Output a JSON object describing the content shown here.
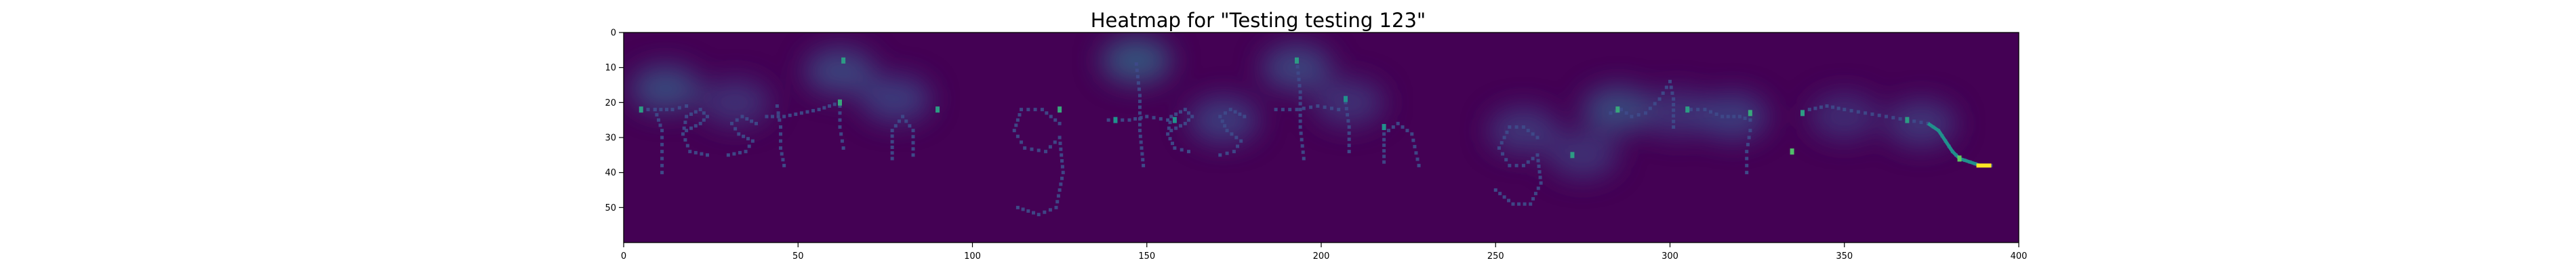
{
  "chart_data": {
    "type": "heatmap",
    "title": "Heatmap for \"Testing testing 123\"",
    "xlabel": "",
    "ylabel": "",
    "xlim": [
      0,
      400
    ],
    "ylim": [
      60,
      0
    ],
    "x_ticks": [
      0,
      50,
      100,
      150,
      200,
      250,
      300,
      350,
      400
    ],
    "y_ticks": [
      0,
      10,
      20,
      30,
      40,
      50
    ],
    "grid": false,
    "colormap": "viridis",
    "background_color": "#440154",
    "strokes": [
      {
        "label": "t",
        "points": [
          [
            9,
            22
          ],
          [
            11,
            28
          ],
          [
            11,
            34
          ],
          [
            11,
            40
          ]
        ]
      },
      {
        "label": "t-cross",
        "points": [
          [
            5,
            22
          ],
          [
            9,
            22
          ],
          [
            14,
            22
          ],
          [
            18,
            21
          ]
        ]
      },
      {
        "label": "e",
        "points": [
          [
            18,
            28
          ],
          [
            22,
            26
          ],
          [
            24,
            24
          ],
          [
            22,
            22
          ],
          [
            18,
            24
          ],
          [
            17,
            29
          ],
          [
            19,
            34
          ],
          [
            24,
            35
          ]
        ]
      },
      {
        "label": "s",
        "points": [
          [
            38,
            26
          ],
          [
            34,
            24
          ],
          [
            31,
            26
          ],
          [
            33,
            29
          ],
          [
            37,
            31
          ],
          [
            35,
            34
          ],
          [
            30,
            35
          ]
        ]
      },
      {
        "label": "t",
        "points": [
          [
            44,
            21
          ],
          [
            45,
            27
          ],
          [
            45,
            33
          ],
          [
            46,
            38
          ]
        ]
      },
      {
        "label": "t-cross",
        "points": [
          [
            41,
            24
          ],
          [
            46,
            24
          ],
          [
            51,
            23
          ],
          [
            56,
            22
          ],
          [
            62,
            20
          ]
        ]
      },
      {
        "label": "i",
        "points": [
          [
            62,
            21
          ],
          [
            62,
            27
          ],
          [
            63,
            33
          ]
        ]
      },
      {
        "label": "i-dot",
        "points": [
          [
            63,
            8
          ]
        ]
      },
      {
        "label": "n",
        "points": [
          [
            77,
            36
          ],
          [
            77,
            28
          ],
          [
            80,
            24
          ],
          [
            83,
            28
          ],
          [
            83,
            35
          ]
        ]
      },
      {
        "label": "g",
        "points": [
          [
            125,
            26
          ],
          [
            120,
            22
          ],
          [
            114,
            22
          ],
          [
            112,
            28
          ],
          [
            115,
            33
          ],
          [
            121,
            34
          ],
          [
            125,
            30
          ],
          [
            126,
            40
          ],
          [
            124,
            50
          ],
          [
            119,
            52
          ],
          [
            113,
            50
          ]
        ]
      },
      {
        "label": "t",
        "points": [
          [
            147,
            9
          ],
          [
            148,
            18
          ],
          [
            148,
            28
          ],
          [
            149,
            38
          ]
        ]
      },
      {
        "label": "t-cross",
        "points": [
          [
            139,
            25
          ],
          [
            145,
            25
          ],
          [
            150,
            24
          ],
          [
            156,
            25
          ]
        ]
      },
      {
        "label": "e",
        "points": [
          [
            157,
            28
          ],
          [
            161,
            26
          ],
          [
            163,
            24
          ],
          [
            161,
            22
          ],
          [
            157,
            24
          ],
          [
            156,
            29
          ],
          [
            158,
            33
          ],
          [
            162,
            34
          ]
        ]
      },
      {
        "label": "s",
        "points": [
          [
            178,
            24
          ],
          [
            174,
            22
          ],
          [
            171,
            24
          ],
          [
            173,
            28
          ],
          [
            177,
            31
          ],
          [
            175,
            34
          ],
          [
            171,
            35
          ]
        ]
      },
      {
        "label": "t",
        "points": [
          [
            193,
            8
          ],
          [
            194,
            17
          ],
          [
            194,
            27
          ],
          [
            195,
            36
          ]
        ]
      },
      {
        "label": "t-cross",
        "points": [
          [
            187,
            22
          ],
          [
            193,
            22
          ],
          [
            199,
            21
          ],
          [
            205,
            22
          ]
        ]
      },
      {
        "label": "i",
        "points": [
          [
            207,
            20
          ],
          [
            208,
            27
          ],
          [
            208,
            34
          ]
        ]
      },
      {
        "label": "n",
        "points": [
          [
            218,
            37
          ],
          [
            218,
            29
          ],
          [
            222,
            26
          ],
          [
            226,
            29
          ],
          [
            228,
            38
          ]
        ]
      },
      {
        "label": "g",
        "points": [
          [
            262,
            30
          ],
          [
            258,
            27
          ],
          [
            254,
            27
          ],
          [
            251,
            33
          ],
          [
            254,
            38
          ],
          [
            258,
            38
          ],
          [
            262,
            35
          ],
          [
            263,
            43
          ],
          [
            260,
            49
          ],
          [
            255,
            49
          ],
          [
            250,
            45
          ]
        ]
      },
      {
        "label": "1",
        "points": [
          [
            283,
            23
          ],
          [
            286,
            22
          ],
          [
            289,
            24
          ],
          [
            293,
            23
          ],
          [
            297,
            19
          ],
          [
            300,
            14
          ],
          [
            301,
            19
          ],
          [
            301,
            27
          ]
        ]
      },
      {
        "label": "2",
        "points": [
          [
            306,
            22
          ],
          [
            310,
            22
          ],
          [
            315,
            24
          ],
          [
            320,
            24
          ],
          [
            323,
            25
          ]
        ]
      },
      {
        "label": "2-loop",
        "points": [
          [
            323,
            28
          ],
          [
            322,
            34
          ],
          [
            322,
            40
          ]
        ]
      },
      {
        "label": "3",
        "points": [
          [
            340,
            22
          ],
          [
            345,
            21
          ],
          [
            350,
            22
          ],
          [
            356,
            23
          ],
          [
            362,
            24
          ],
          [
            368,
            25
          ],
          [
            374,
            26
          ]
        ]
      },
      {
        "label": "tail",
        "points": [
          [
            374,
            26
          ],
          [
            377,
            28
          ],
          [
            379,
            31
          ],
          [
            381,
            34
          ],
          [
            383,
            36
          ],
          [
            386,
            37
          ],
          [
            389,
            38
          ],
          [
            392,
            38
          ]
        ]
      }
    ],
    "hotspots": [
      {
        "x": 12,
        "y": 16,
        "value": 0.3
      },
      {
        "x": 32,
        "y": 20,
        "value": 0.2
      },
      {
        "x": 62,
        "y": 11,
        "value": 0.28
      },
      {
        "x": 78,
        "y": 19,
        "value": 0.24
      },
      {
        "x": 147,
        "y": 8,
        "value": 0.36
      },
      {
        "x": 193,
        "y": 10,
        "value": 0.28
      },
      {
        "x": 208,
        "y": 20,
        "value": 0.2
      },
      {
        "x": 172,
        "y": 25,
        "value": 0.24
      },
      {
        "x": 258,
        "y": 28,
        "value": 0.22
      },
      {
        "x": 275,
        "y": 35,
        "value": 0.2
      },
      {
        "x": 285,
        "y": 22,
        "value": 0.3
      },
      {
        "x": 302,
        "y": 23,
        "value": 0.2
      },
      {
        "x": 318,
        "y": 24,
        "value": 0.24
      },
      {
        "x": 350,
        "y": 24,
        "value": 0.18
      },
      {
        "x": 372,
        "y": 26,
        "value": 0.22
      }
    ],
    "bright_marks": [
      {
        "x": 5,
        "y": 22,
        "value": 0.55
      },
      {
        "x": 62,
        "y": 20,
        "value": 0.6
      },
      {
        "x": 63,
        "y": 8,
        "value": 0.55
      },
      {
        "x": 90,
        "y": 22,
        "value": 0.55
      },
      {
        "x": 125,
        "y": 22,
        "value": 0.6
      },
      {
        "x": 141,
        "y": 25,
        "value": 0.5
      },
      {
        "x": 158,
        "y": 25,
        "value": 0.5
      },
      {
        "x": 193,
        "y": 8,
        "value": 0.55
      },
      {
        "x": 207,
        "y": 19,
        "value": 0.5
      },
      {
        "x": 218,
        "y": 27,
        "value": 0.5
      },
      {
        "x": 272,
        "y": 35,
        "value": 0.55
      },
      {
        "x": 285,
        "y": 22,
        "value": 0.6
      },
      {
        "x": 305,
        "y": 22,
        "value": 0.55
      },
      {
        "x": 323,
        "y": 23,
        "value": 0.6
      },
      {
        "x": 335,
        "y": 34,
        "value": 0.7
      },
      {
        "x": 338,
        "y": 23,
        "value": 0.55
      },
      {
        "x": 368,
        "y": 25,
        "value": 0.55
      },
      {
        "x": 383,
        "y": 36,
        "value": 0.75
      },
      {
        "x": 390,
        "y": 38,
        "value": 1.0
      }
    ]
  }
}
